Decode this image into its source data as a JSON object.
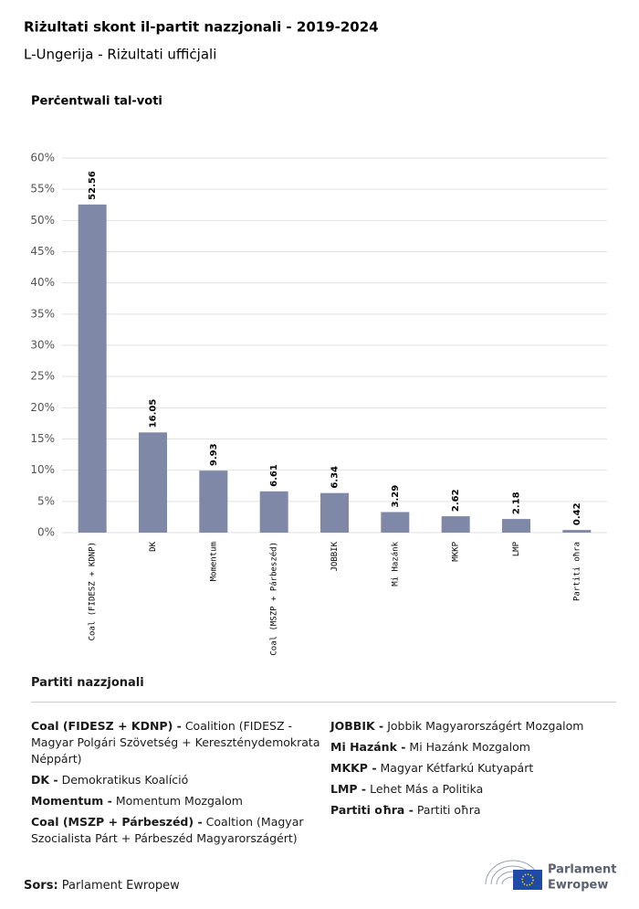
{
  "chart_data": {
    "type": "bar",
    "title": "Riżultati skont il-partit nazzjonali - 2019-2024",
    "subtitle": "L-Ungerija - Riżultati uffiċjali",
    "y_label": "Perċentwali tal-voti",
    "categories": [
      "Coal (FIDESZ + KDNP)",
      "DK",
      "Momentum",
      "Coal (MSZP + Párbeszéd)",
      "JOBBIK",
      "Mi Hazánk",
      "MKKP",
      "LMP",
      "Partiti oħra"
    ],
    "values": [
      52.56,
      16.05,
      9.93,
      6.61,
      6.34,
      3.29,
      2.62,
      2.18,
      0.42
    ],
    "color": "#7f88a6",
    "ylim": [
      0,
      60
    ],
    "yticks": [
      {
        "value": 0,
        "label": "0%"
      },
      {
        "value": 5,
        "label": "5%"
      },
      {
        "value": 10,
        "label": "10%"
      },
      {
        "value": 15,
        "label": "15%"
      },
      {
        "value": 20,
        "label": "20%"
      },
      {
        "value": 25,
        "label": "25%"
      },
      {
        "value": 30,
        "label": "30%"
      },
      {
        "value": 35,
        "label": "35%"
      },
      {
        "value": 40,
        "label": "40%"
      },
      {
        "value": 45,
        "label": "45%"
      },
      {
        "value": 50,
        "label": "50%"
      },
      {
        "value": 55,
        "label": "55%"
      },
      {
        "value": 60,
        "label": "60%"
      }
    ],
    "grid": true
  },
  "legend": {
    "title": "Partiti nazzjonali",
    "items": [
      {
        "key": "Coal (FIDESZ + KDNP) -",
        "text": "Coalition (FIDESZ - Magyar Polgári Szövetség + Kereszténydemokrata Néppárt)"
      },
      {
        "key": "DK -",
        "text": "Demokratikus Koalíció"
      },
      {
        "key": "Momentum -",
        "text": "Momentum Mozgalom"
      },
      {
        "key": "Coal (MSZP + Párbeszéd) -",
        "text": "Coaltion (Magyar Szocialista Párt + Párbeszéd Magyarországért)"
      },
      {
        "key": "JOBBIK -",
        "text": "Jobbik Magyarországért Mozgalom"
      },
      {
        "key": "Mi Hazánk -",
        "text": "Mi Hazánk Mozgalom"
      },
      {
        "key": "MKKP -",
        "text": "Magyar Kétfarkú Kutyapárt"
      },
      {
        "key": "LMP -",
        "text": "Lehet Más a Politika"
      },
      {
        "key": "Partiti oħra -",
        "text": "Partiti oħra"
      }
    ]
  },
  "source": {
    "label": "Sors:",
    "text": "Parlament Ewropew"
  },
  "logo": {
    "line1": "Parlament",
    "line2": "Ewropew"
  }
}
